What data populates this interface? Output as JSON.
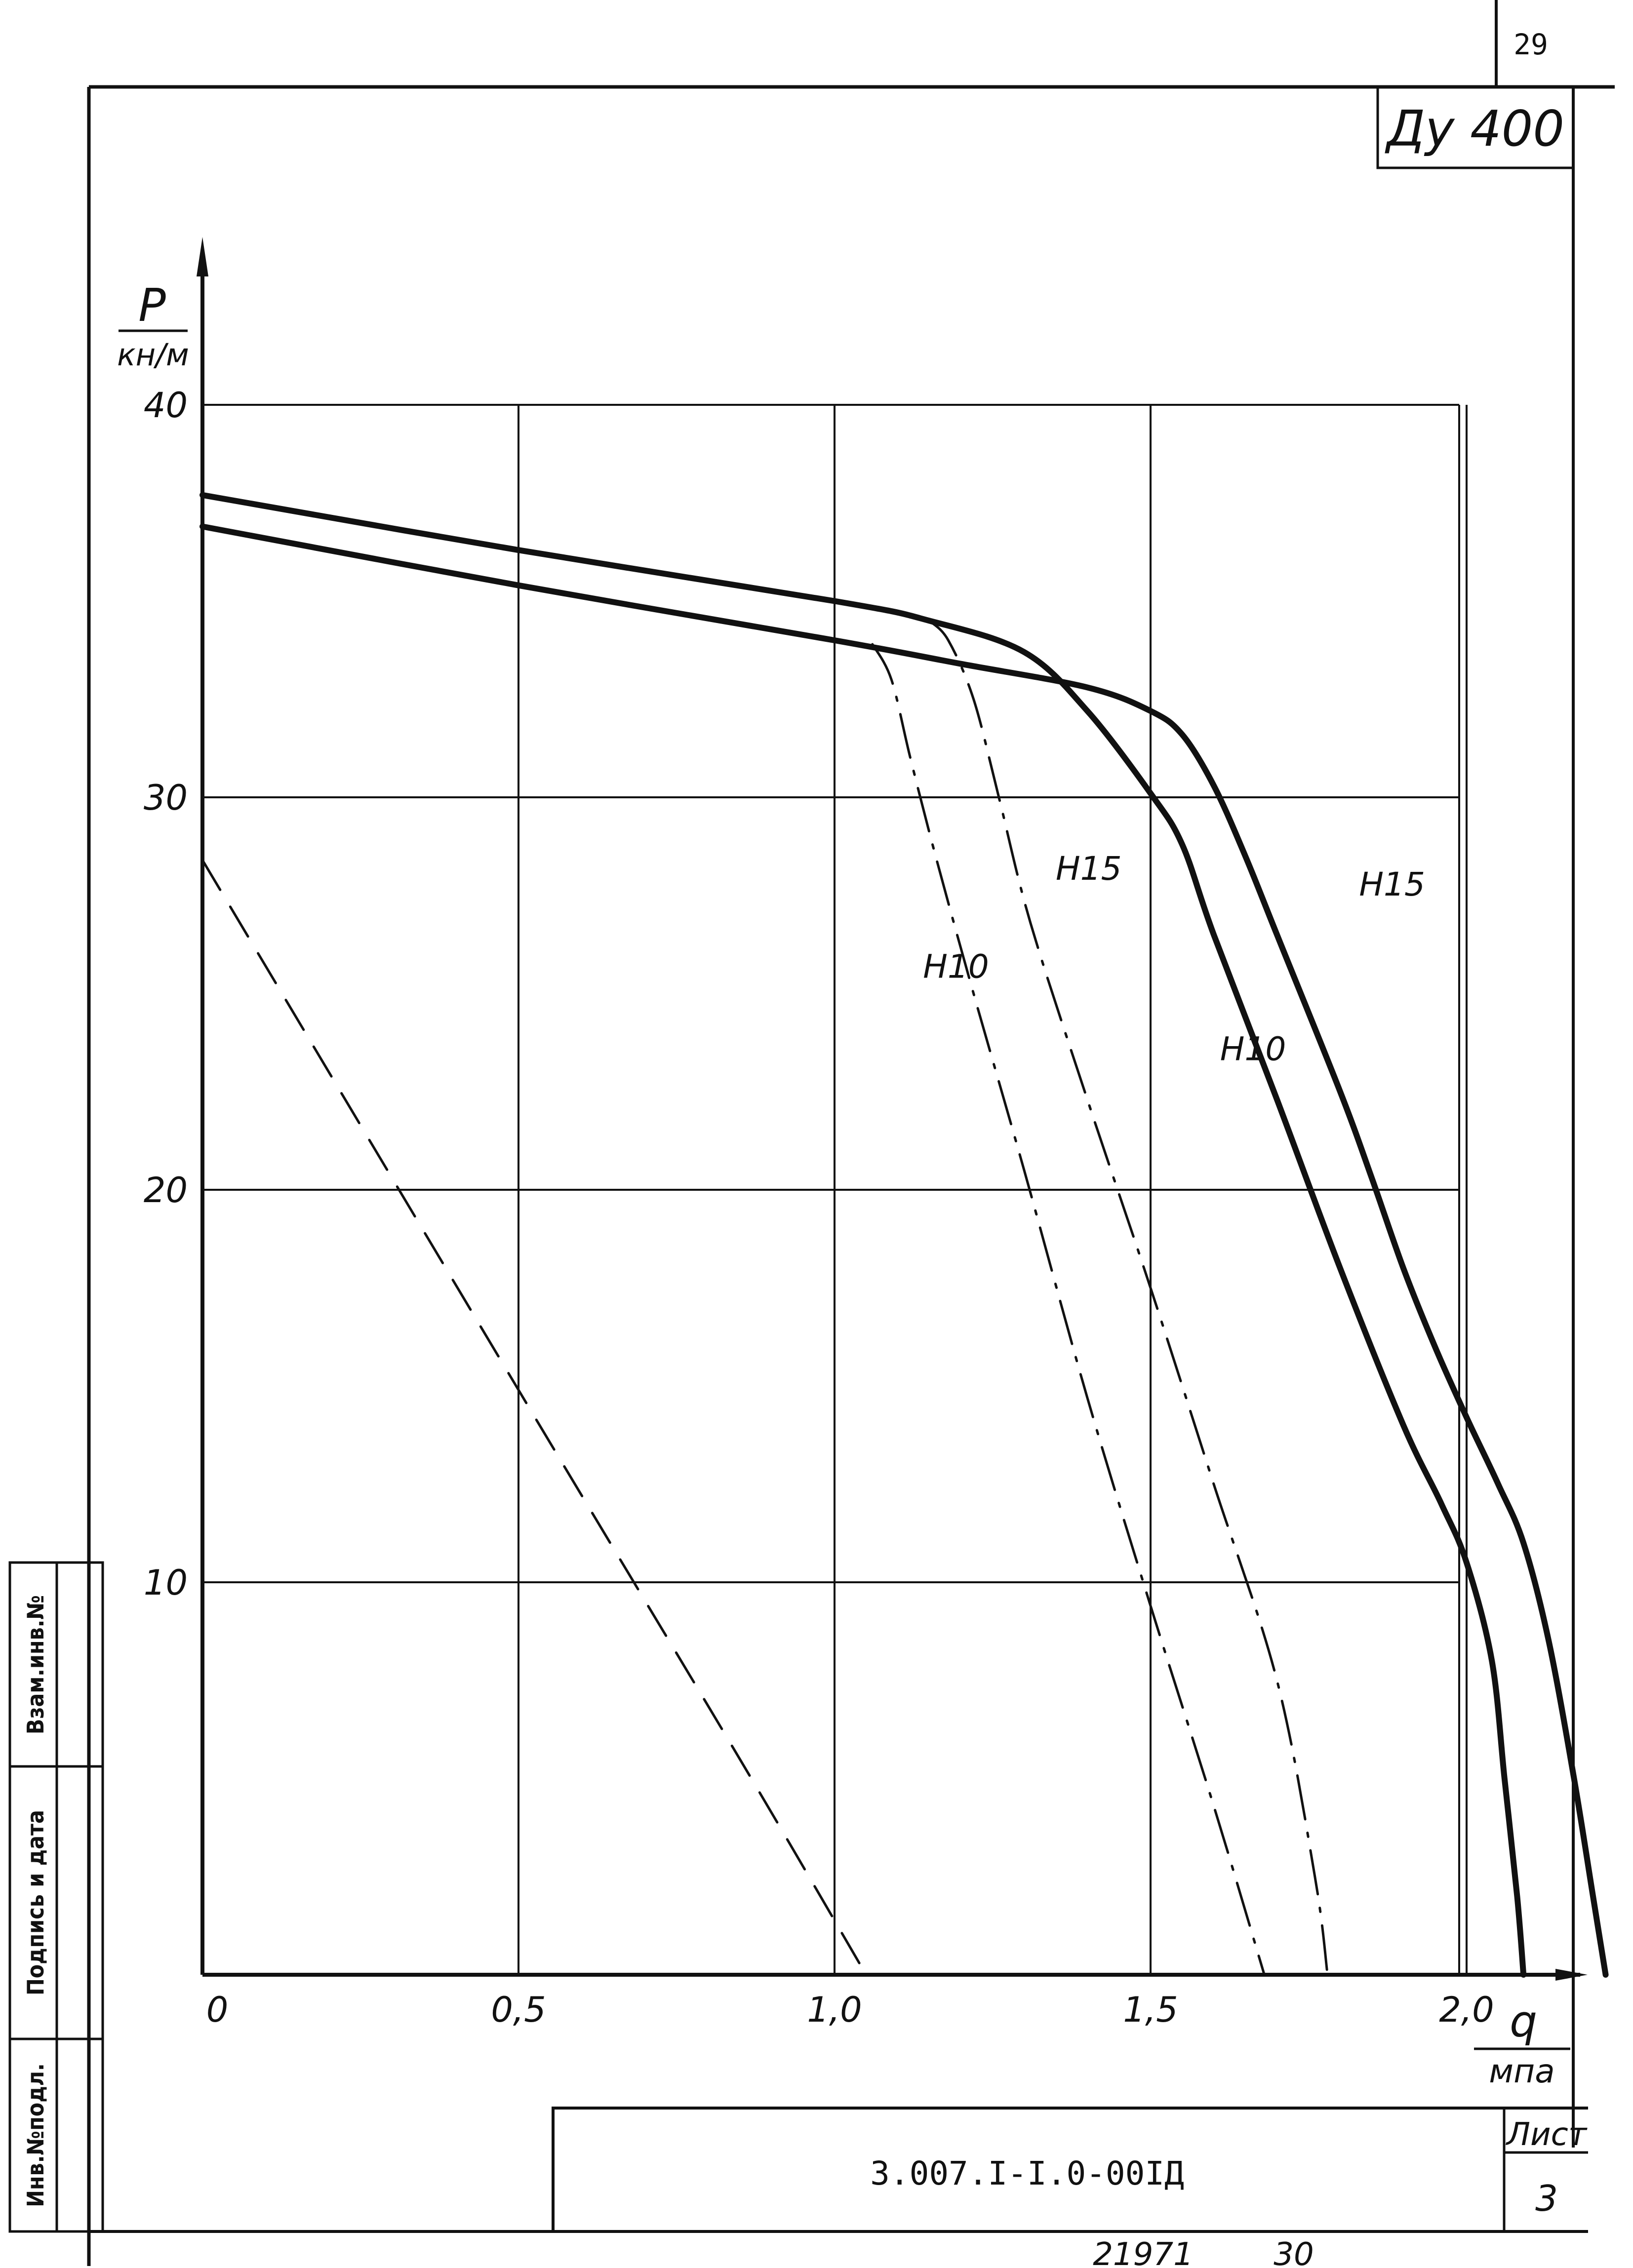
{
  "page_number": "29",
  "corner_label": "Ду 400",
  "drawing_code": "3.007.I-I.0-00IД",
  "sheet_label": "Лист",
  "sheet_number": "3",
  "footer_left": "21971",
  "footer_right": "30",
  "side_stamp": {
    "inv_orig": "Инв.№подл.",
    "signature_date": "Подпись и дата",
    "replace_inv": "Взам.инв.№"
  },
  "chart_data": {
    "type": "line",
    "title": "",
    "ylabel": "P",
    "ylabel_unit": "кн/м",
    "xlabel": "q",
    "xlabel_unit": "мпа",
    "xlim": [
      0,
      2.2
    ],
    "ylim": [
      0,
      40
    ],
    "grid": true,
    "x_ticks": [
      {
        "value": 0,
        "label": "0"
      },
      {
        "value": 0.5,
        "label": "0,5"
      },
      {
        "value": 1.0,
        "label": "1,0"
      },
      {
        "value": 1.5,
        "label": "1,5"
      },
      {
        "value": 2.0,
        "label": "2,0"
      }
    ],
    "y_ticks": [
      {
        "value": 10,
        "label": "10"
      },
      {
        "value": 20,
        "label": "20"
      },
      {
        "value": 30,
        "label": "30"
      },
      {
        "value": 40,
        "label": "40"
      }
    ],
    "series": [
      {
        "name": "Н15",
        "style": "solid-thick",
        "points": [
          [
            0,
            37.7
          ],
          [
            0.5,
            36.3
          ],
          [
            1.0,
            35.0
          ],
          [
            1.15,
            34.5
          ],
          [
            1.3,
            33.7
          ],
          [
            1.4,
            32.2
          ],
          [
            1.5,
            30.1
          ],
          [
            1.55,
            28.8
          ],
          [
            1.6,
            26.5
          ],
          [
            1.7,
            22.3
          ],
          [
            1.8,
            18.0
          ],
          [
            1.9,
            14.0
          ],
          [
            1.96,
            12.0
          ],
          [
            2.0,
            10.5
          ],
          [
            2.04,
            8.0
          ],
          [
            2.06,
            5.0
          ],
          [
            2.08,
            2.0
          ],
          [
            2.09,
            0
          ]
        ]
      },
      {
        "name": "Н10",
        "style": "solid-thick",
        "points": [
          [
            0,
            36.9
          ],
          [
            0.5,
            35.4
          ],
          [
            1.0,
            34.0
          ],
          [
            1.2,
            33.4
          ],
          [
            1.4,
            32.8
          ],
          [
            1.5,
            32.2
          ],
          [
            1.55,
            31.6
          ],
          [
            1.6,
            30.3
          ],
          [
            1.65,
            28.5
          ],
          [
            1.7,
            26.5
          ],
          [
            1.8,
            22.5
          ],
          [
            1.85,
            20.3
          ],
          [
            1.9,
            18.0
          ],
          [
            1.95,
            16.0
          ],
          [
            2.0,
            14.2
          ],
          [
            2.05,
            12.5
          ],
          [
            2.09,
            11.0
          ],
          [
            2.13,
            8.5
          ],
          [
            2.17,
            5.0
          ],
          [
            2.2,
            2.0
          ],
          [
            2.22,
            0
          ]
        ]
      },
      {
        "name": "Н15",
        "style": "dash-dot",
        "points": [
          [
            1.15,
            34.5
          ],
          [
            1.18,
            34.0
          ],
          [
            1.22,
            32.5
          ],
          [
            1.26,
            30.0
          ],
          [
            1.31,
            26.8
          ],
          [
            1.4,
            22.3
          ],
          [
            1.5,
            17.5
          ],
          [
            1.6,
            12.5
          ],
          [
            1.7,
            7.5
          ],
          [
            1.76,
            2.5
          ],
          [
            1.78,
            0
          ]
        ]
      },
      {
        "name": "Н10",
        "style": "dash-dot",
        "points": [
          [
            1.06,
            33.9
          ],
          [
            1.09,
            33.0
          ],
          [
            1.12,
            31.0
          ],
          [
            1.16,
            28.5
          ],
          [
            1.22,
            25.0
          ],
          [
            1.3,
            20.5
          ],
          [
            1.4,
            14.7
          ],
          [
            1.5,
            9.4
          ],
          [
            1.6,
            4.3
          ],
          [
            1.68,
            0
          ]
        ]
      },
      {
        "name": "",
        "style": "dashed",
        "points": [
          [
            0,
            28.4
          ],
          [
            0.5,
            14.9
          ],
          [
            0.85,
            5.5
          ],
          [
            1.05,
            0
          ]
        ]
      }
    ],
    "curve_labels": [
      {
        "text": "Н15",
        "x": 1.83,
        "y": 27.5
      },
      {
        "text": "Н15",
        "x": 1.35,
        "y": 27.9
      },
      {
        "text": "Н10",
        "x": 1.14,
        "y": 25.4
      },
      {
        "text": "Н10",
        "x": 1.61,
        "y": 23.3
      }
    ]
  }
}
